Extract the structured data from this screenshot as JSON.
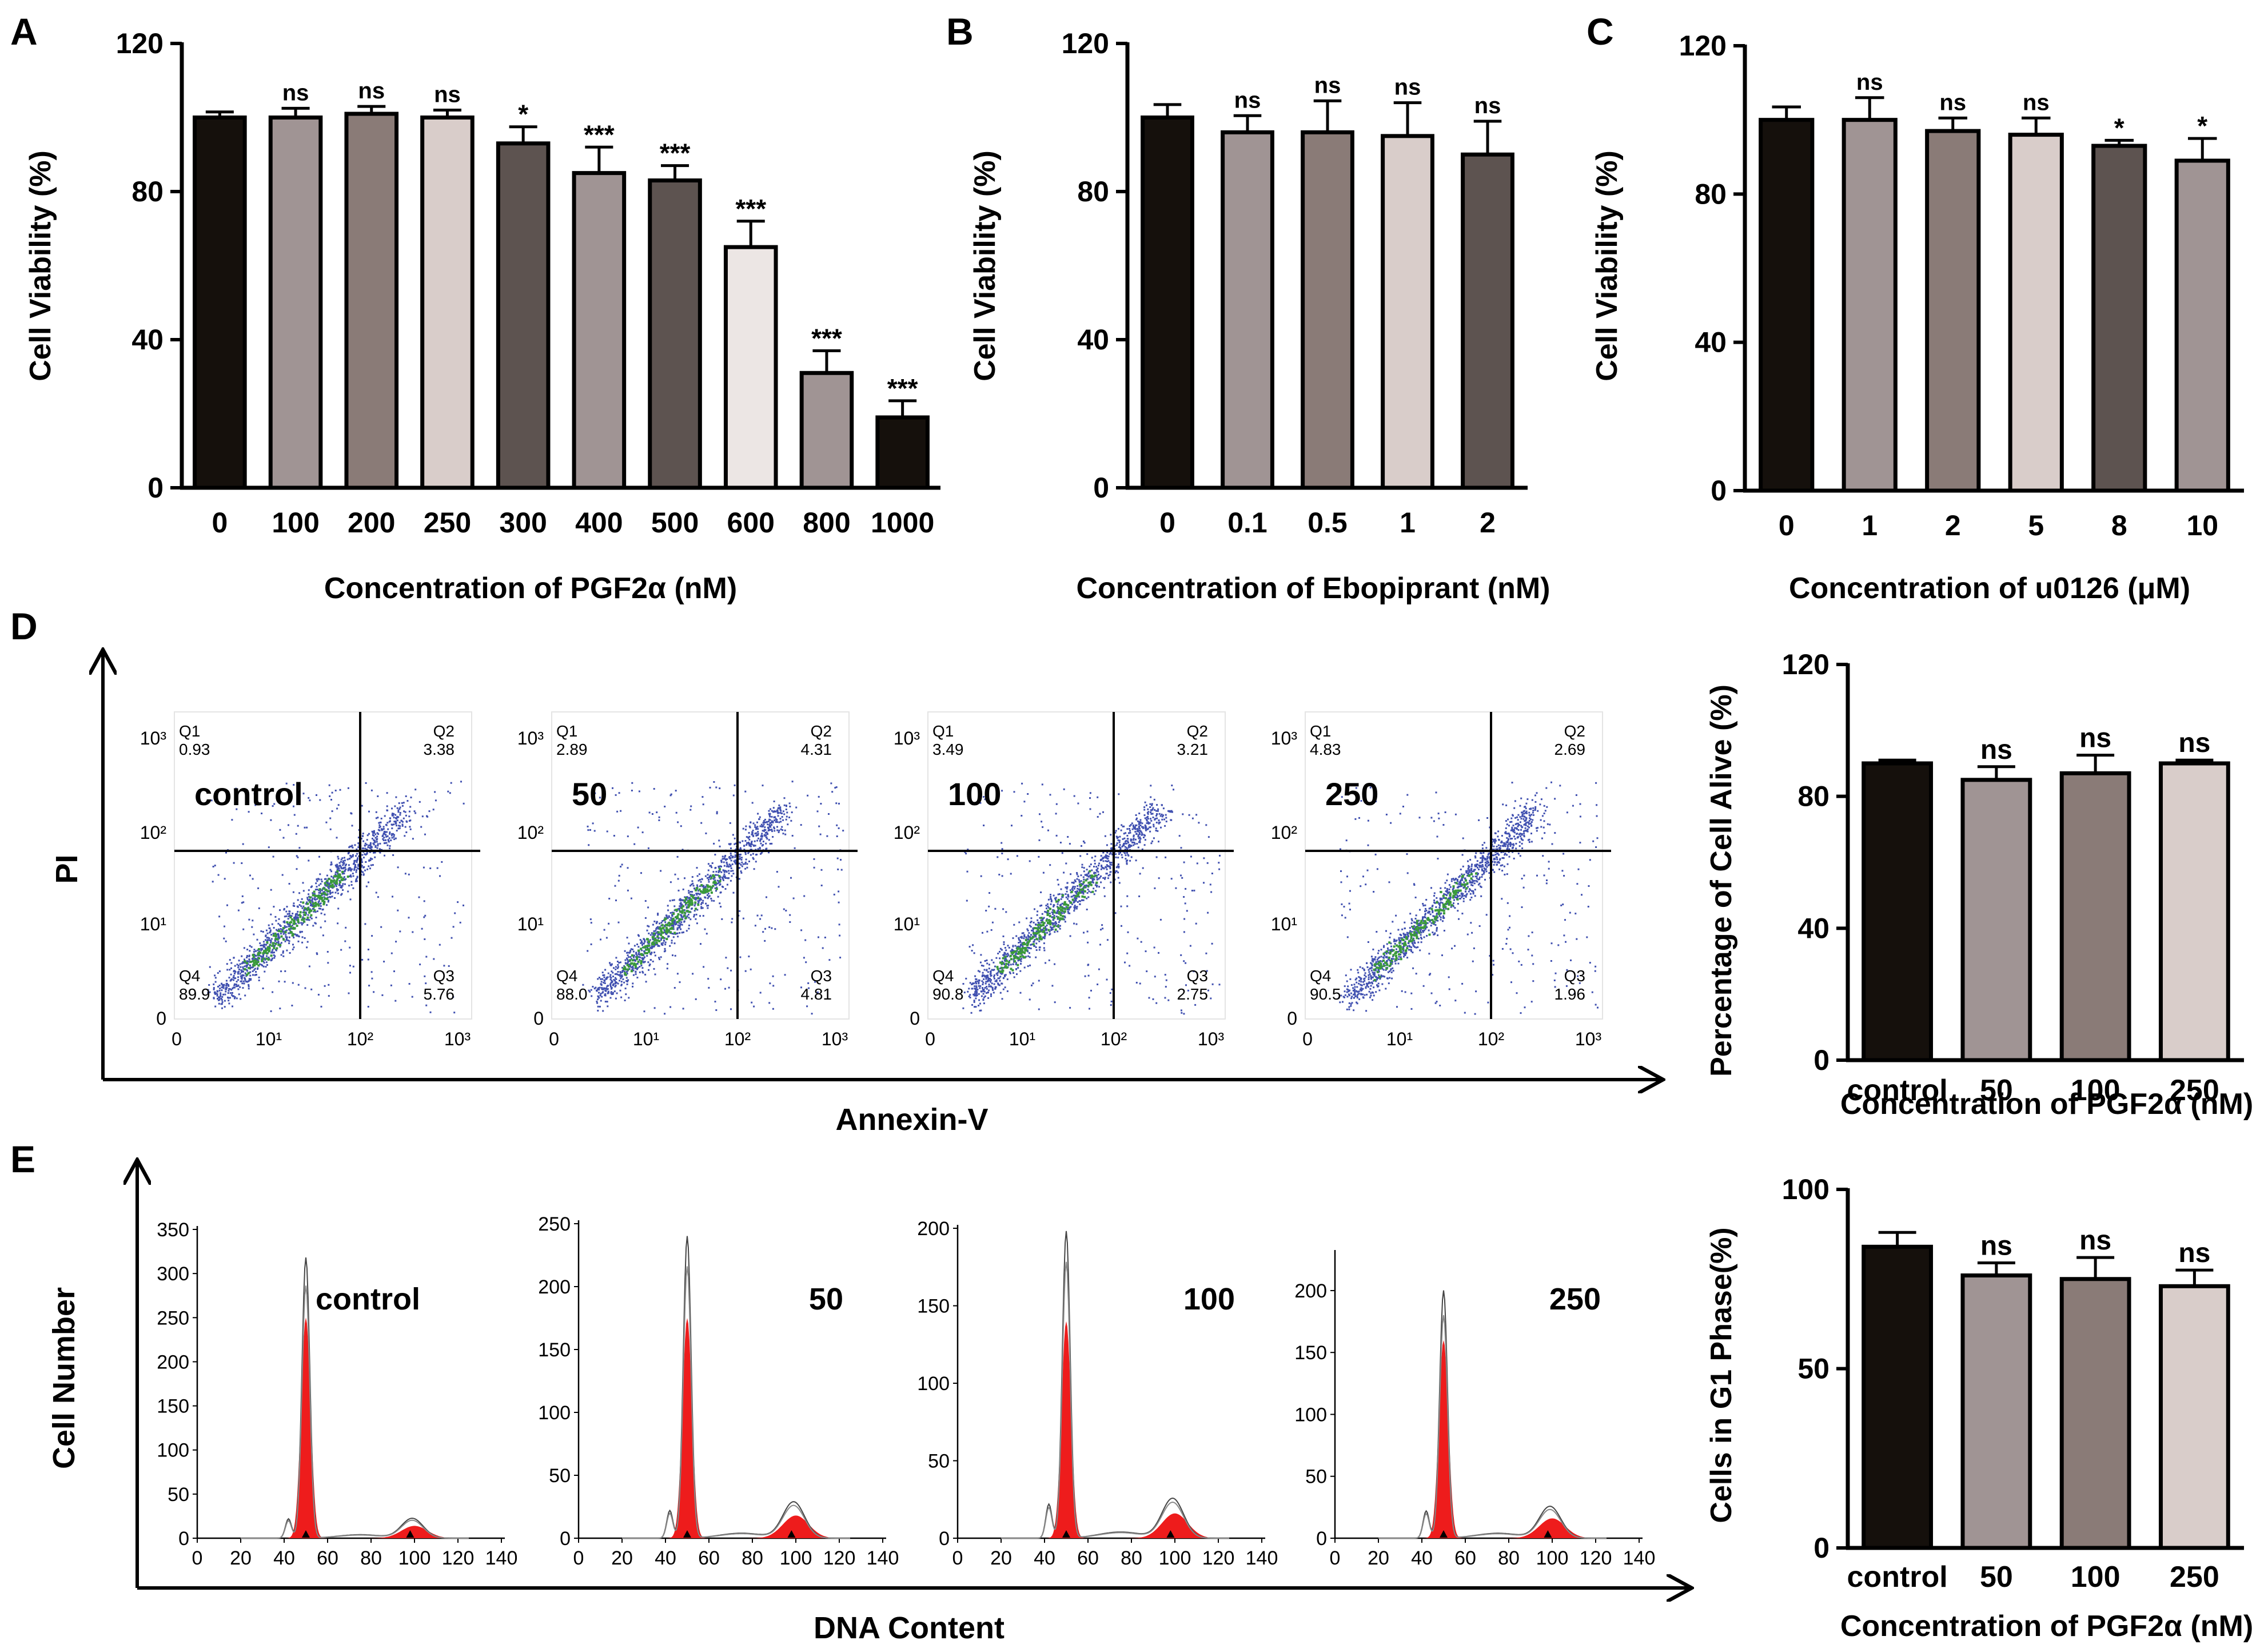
{
  "panel_letters": [
    "A",
    "B",
    "C",
    "D",
    "E"
  ],
  "colors": {
    "black": "#15100c",
    "gray1": "#a09494",
    "gray2": "#8a7b77",
    "light": "#d9cdca",
    "dark": "#5d5350",
    "lightest": "#ece6e4",
    "red": "#ee1c1c",
    "scatter": "#4050b0",
    "density": "#3a9a3a"
  },
  "chart_data": [
    {
      "id": "A",
      "type": "bar",
      "title": "",
      "xlabel": "Concentration of PGF2α (nM)",
      "ylabel": "Cell Viability (%)",
      "ylim": [
        0,
        120
      ],
      "yticks": [
        "0",
        "40",
        "80",
        "120"
      ],
      "categories": [
        "0",
        "100",
        "200",
        "250",
        "300",
        "400",
        "500",
        "600",
        "800",
        "1000"
      ],
      "values": [
        100,
        100,
        101,
        100,
        93,
        85,
        83,
        65,
        31,
        19
      ],
      "errors": [
        1.5,
        2.5,
        2,
        2,
        4.5,
        7,
        4,
        7,
        6,
        4.5
      ],
      "annotations": [
        "",
        "ns",
        "ns",
        "ns",
        "*",
        "***",
        "***",
        "***",
        "***",
        "***"
      ],
      "fills": [
        "black",
        "gray1",
        "gray2",
        "light",
        "dark",
        "gray1",
        "dark",
        "lightest",
        "gray1",
        "black"
      ]
    },
    {
      "id": "B",
      "type": "bar",
      "xlabel": "Concentration of Ebopiprant (nM)",
      "ylabel": "Cell Viability (%)",
      "ylim": [
        0,
        120
      ],
      "yticks": [
        "0",
        "40",
        "80",
        "120"
      ],
      "categories": [
        "0",
        "0.1",
        "0.5",
        "1",
        "2"
      ],
      "values": [
        100,
        96,
        96,
        95,
        90
      ],
      "errors": [
        3.5,
        4.5,
        8.5,
        9,
        9
      ],
      "annotations": [
        "",
        "ns",
        "ns",
        "ns",
        "ns"
      ],
      "fills": [
        "black",
        "gray1",
        "gray2",
        "light",
        "dark"
      ]
    },
    {
      "id": "C",
      "type": "bar",
      "xlabel": "Concentration of u0126 (μM)",
      "ylabel": "Cell Viability (%)",
      "ylim": [
        0,
        120
      ],
      "yticks": [
        "0",
        "40",
        "80",
        "120"
      ],
      "categories": [
        "0",
        "1",
        "2",
        "5",
        "8",
        "10"
      ],
      "values": [
        100,
        100,
        97,
        96,
        93,
        89
      ],
      "errors": [
        3.5,
        6,
        3.5,
        4.5,
        1.5,
        6
      ],
      "annotations": [
        "",
        "ns",
        "ns",
        "ns",
        "*",
        "*"
      ],
      "fills": [
        "black",
        "gray1",
        "gray2",
        "light",
        "dark",
        "gray1"
      ]
    },
    {
      "id": "D-bar",
      "type": "bar",
      "xlabel": "Concentration of PGF2α (nM)",
      "ylabel": "Percentage of Cell Alive (%)",
      "ylim": [
        0,
        120
      ],
      "yticks": [
        "0",
        "40",
        "80",
        "120"
      ],
      "categories": [
        "control",
        "50",
        "100",
        "250"
      ],
      "values": [
        90,
        85,
        87,
        90
      ],
      "errors": [
        1,
        4,
        5.5,
        1
      ],
      "annotations": [
        "",
        "ns",
        "ns",
        "ns"
      ],
      "fills": [
        "black",
        "gray1",
        "gray2",
        "light"
      ]
    },
    {
      "id": "E-bar",
      "type": "bar",
      "xlabel": "Concentration of PGF2α (nM)",
      "ylabel": "Cells in G1 Phase(%)",
      "ylim": [
        0,
        100
      ],
      "yticks": [
        "0",
        "50",
        "100"
      ],
      "categories": [
        "control",
        "50",
        "100",
        "250"
      ],
      "values": [
        84,
        76,
        75,
        73
      ],
      "errors": [
        4,
        3.5,
        6,
        4.5
      ],
      "annotations": [
        "",
        "ns",
        "ns",
        "ns"
      ],
      "fills": [
        "black",
        "gray1",
        "gray2",
        "light"
      ]
    },
    {
      "id": "D-flow",
      "type": "scatter",
      "xlabel": "Annexin-V",
      "ylabel": "PI",
      "xticks": [
        "0",
        "10¹",
        "10²",
        "10³"
      ],
      "yticks": [
        "0",
        "10¹",
        "10²",
        "10³"
      ],
      "plots": [
        {
          "label": "control",
          "Q1": [
            "Q1",
            "0.93"
          ],
          "Q2": [
            "Q2",
            "3.38"
          ],
          "Q3": [
            "Q3",
            "5.76"
          ],
          "Q4": [
            "Q4",
            "89.9"
          ]
        },
        {
          "label": "50",
          "Q1": [
            "Q1",
            "2.89"
          ],
          "Q2": [
            "Q2",
            "4.31"
          ],
          "Q3": [
            "Q3",
            "4.81"
          ],
          "Q4": [
            "Q4",
            "88.0"
          ]
        },
        {
          "label": "100",
          "Q1": [
            "Q1",
            "3.49"
          ],
          "Q2": [
            "Q2",
            "3.21"
          ],
          "Q3": [
            "Q3",
            "2.75"
          ],
          "Q4": [
            "Q4",
            "90.8"
          ]
        },
        {
          "label": "250",
          "Q1": [
            "Q1",
            "4.83"
          ],
          "Q2": [
            "Q2",
            "2.69"
          ],
          "Q3": [
            "Q3",
            "1.96"
          ],
          "Q4": [
            "Q4",
            "90.5"
          ]
        }
      ]
    },
    {
      "id": "E-hist",
      "type": "area",
      "xlabel": "DNA Content",
      "ylabel": "Cell Number",
      "xlim": [
        0,
        140
      ],
      "xticks": [
        "0",
        "20",
        "40",
        "60",
        "80",
        "100",
        "120",
        "140"
      ],
      "plots": [
        {
          "label": "control",
          "ylim": [
            0,
            350
          ],
          "yticks": [
            "0",
            "50",
            "100",
            "150",
            "200",
            "250",
            "300",
            "350"
          ],
          "g1_peak": 250,
          "outline_peak": 318,
          "g2_peak": 14
        },
        {
          "label": "50",
          "ylim": [
            0,
            250
          ],
          "yticks": [
            "0",
            "50",
            "100",
            "150",
            "200",
            "250"
          ],
          "g1_peak": 175,
          "outline_peak": 240,
          "g2_peak": 18
        },
        {
          "label": "100",
          "ylim": [
            0,
            200
          ],
          "yticks": [
            "0",
            "50",
            "100",
            "150",
            "200"
          ],
          "g1_peak": 140,
          "outline_peak": 198,
          "g2_peak": 16
        },
        {
          "label": "250",
          "ylim": [
            0,
            230
          ],
          "yticks": [
            "0",
            "50",
            "100",
            "150",
            "200"
          ],
          "g1_peak": 160,
          "outline_peak": 200,
          "g2_peak": 16
        }
      ]
    }
  ]
}
